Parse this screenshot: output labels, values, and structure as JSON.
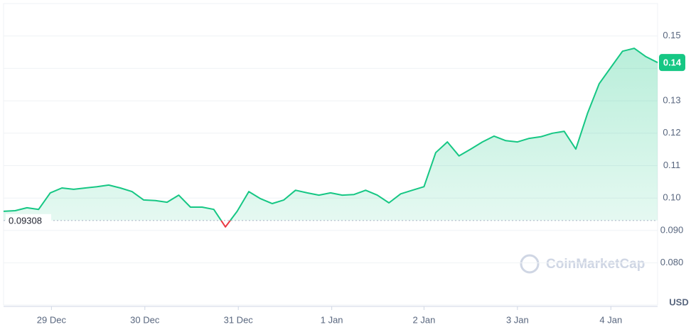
{
  "chart_data": {
    "type": "line",
    "values": [
      0.0959,
      0.0961,
      0.097,
      0.0965,
      0.1016,
      0.1031,
      0.1027,
      0.1031,
      0.1035,
      0.104,
      0.1031,
      0.102,
      0.0994,
      0.0992,
      0.0987,
      0.1009,
      0.0972,
      0.0972,
      0.0965,
      0.0911,
      0.0959,
      0.102,
      0.0998,
      0.0983,
      0.0994,
      0.1024,
      0.1016,
      0.1009,
      0.1016,
      0.1009,
      0.1011,
      0.1024,
      0.1009,
      0.0985,
      0.1013,
      0.1024,
      0.1035,
      0.114,
      0.1173,
      0.113,
      0.1151,
      0.1173,
      0.1191,
      0.1177,
      0.1173,
      0.1184,
      0.1189,
      0.12,
      0.1206,
      0.1151,
      0.1261,
      0.1353,
      0.1403,
      0.1453,
      0.1462,
      0.1436,
      0.1418
    ],
    "color": "#16c784",
    "below_color": "#ea3943",
    "reference_value": 0.09308,
    "current_label": "0.14",
    "xlim": [
      0,
      56
    ],
    "xticks": [
      {
        "value": 4.1,
        "label": "29 Dec"
      },
      {
        "value": 12.1,
        "label": "30 Dec"
      },
      {
        "value": 20.1,
        "label": "31 Dec"
      },
      {
        "value": 28.1,
        "label": "1 Jan"
      },
      {
        "value": 36.0,
        "label": "2 Jan"
      },
      {
        "value": 44.0,
        "label": "3 Jan"
      },
      {
        "value": 52.0,
        "label": "4 Jan"
      }
    ],
    "ylim": [
      0.067,
      0.16
    ],
    "yticks": [
      {
        "value": 0.08,
        "label": "0.080"
      },
      {
        "value": 0.09,
        "label": "0.090"
      },
      {
        "value": 0.1,
        "label": "0.10"
      },
      0.11,
      0.12,
      0.13,
      0.14,
      0.15
    ],
    "grid": true,
    "currency": "USD",
    "watermark": "CoinMarketCap"
  }
}
